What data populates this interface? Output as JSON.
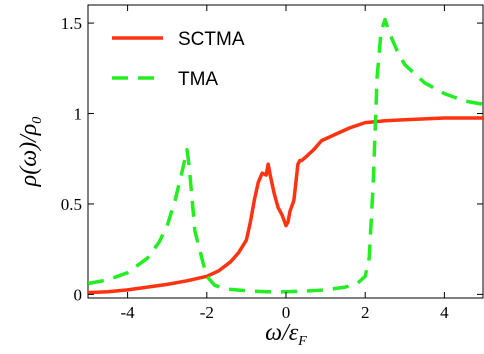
{
  "chart_data": {
    "type": "line",
    "title": "",
    "xlabel": "ω/ε_F",
    "ylabel": "ρ(ω)/ρ_0",
    "xlim": [
      -5,
      5
    ],
    "ylim": [
      -0.02,
      1.6
    ],
    "xticks": [
      -4,
      -2,
      0,
      2,
      4
    ],
    "xtick_labels": [
      "-4",
      "-2",
      "0",
      "2",
      "4"
    ],
    "yticks": [
      0,
      0.5,
      1,
      1.5
    ],
    "ytick_labels": [
      "0",
      "0.5",
      "1",
      "1.5"
    ],
    "grid": false,
    "legend_position": "top-left",
    "series": [
      {
        "name": "SCTMA",
        "color": "#ff3311",
        "line_style": "solid",
        "x": [
          -5,
          -4.5,
          -4,
          -3.5,
          -3,
          -2.5,
          -2,
          -1.7,
          -1.4,
          -1.2,
          -1.0,
          -0.9,
          -0.8,
          -0.7,
          -0.6,
          -0.5,
          -0.45,
          -0.4,
          -0.3,
          -0.2,
          -0.1,
          0,
          0.05,
          0.1,
          0.2,
          0.3,
          0.35,
          0.4,
          0.5,
          0.7,
          0.9,
          1.1,
          1.3,
          1.6,
          2.0,
          2.5,
          3.0,
          3.5,
          4.0,
          4.5,
          5.0
        ],
        "y": [
          0.01,
          0.015,
          0.025,
          0.04,
          0.055,
          0.075,
          0.1,
          0.13,
          0.18,
          0.23,
          0.3,
          0.4,
          0.52,
          0.62,
          0.67,
          0.66,
          0.72,
          0.66,
          0.56,
          0.48,
          0.44,
          0.38,
          0.4,
          0.46,
          0.52,
          0.72,
          0.74,
          0.74,
          0.76,
          0.8,
          0.85,
          0.87,
          0.89,
          0.92,
          0.95,
          0.96,
          0.965,
          0.97,
          0.975,
          0.975,
          0.975
        ]
      },
      {
        "name": "TMA",
        "color": "#22ee22",
        "line_style": "dashed",
        "x": [
          -5,
          -4.5,
          -4,
          -3.5,
          -3.2,
          -3.0,
          -2.8,
          -2.6,
          -2.5,
          -2.45,
          -2.3,
          -2.1,
          -2.0,
          -1.8,
          -1.5,
          -1.0,
          -0.5,
          0,
          0.5,
          1.0,
          1.5,
          1.8,
          2.0,
          2.1,
          2.2,
          2.3,
          2.4,
          2.5,
          2.6,
          2.8,
          3.0,
          3.5,
          4.0,
          4.5,
          5.0
        ],
        "y": [
          0.06,
          0.08,
          0.12,
          0.2,
          0.29,
          0.38,
          0.52,
          0.7,
          0.8,
          0.72,
          0.35,
          0.18,
          0.1,
          0.05,
          0.03,
          0.02,
          0.015,
          0.015,
          0.018,
          0.025,
          0.04,
          0.06,
          0.1,
          0.2,
          0.6,
          1.2,
          1.45,
          1.52,
          1.45,
          1.35,
          1.27,
          1.17,
          1.11,
          1.07,
          1.05
        ]
      }
    ]
  }
}
